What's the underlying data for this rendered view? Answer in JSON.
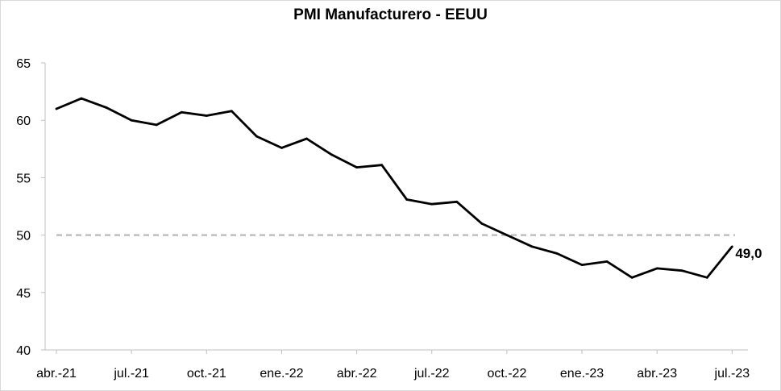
{
  "chart_data": {
    "type": "line",
    "title": "PMI Manufacturero - EEUU",
    "xlabel": "",
    "ylabel": "",
    "ylim": [
      40,
      65
    ],
    "y_ticks": [
      "40",
      "45",
      "50",
      "55",
      "60",
      "65"
    ],
    "x_tick_labels": [
      "abr.-21",
      "jul.-21",
      "oct.-21",
      "ene.-22",
      "abr.-22",
      "jul.-22",
      "oct.-22",
      "ene.-23",
      "abr.-23",
      "jul.-23"
    ],
    "x": [
      "2021-04",
      "2021-05",
      "2021-06",
      "2021-07",
      "2021-08",
      "2021-09",
      "2021-10",
      "2021-11",
      "2021-12",
      "2022-01",
      "2022-02",
      "2022-03",
      "2022-04",
      "2022-05",
      "2022-06",
      "2022-07",
      "2022-08",
      "2022-09",
      "2022-10",
      "2022-11",
      "2022-12",
      "2023-01",
      "2023-02",
      "2023-03",
      "2023-04",
      "2023-05",
      "2023-06",
      "2023-07"
    ],
    "series": [
      {
        "values": [
          61.0,
          61.9,
          61.1,
          60.0,
          59.6,
          60.7,
          60.4,
          60.8,
          58.6,
          57.6,
          58.4,
          57.0,
          55.9,
          56.1,
          53.1,
          52.7,
          52.9,
          51.0,
          50.0,
          49.0,
          48.4,
          47.4,
          47.7,
          46.3,
          47.1,
          46.9,
          46.3,
          49.0
        ],
        "color": "#000000"
      }
    ],
    "reference_line": {
      "value": 50,
      "color": "#bfbfbf",
      "style": "dashed"
    },
    "end_label": "49,0",
    "grid": false,
    "legend": "none"
  }
}
